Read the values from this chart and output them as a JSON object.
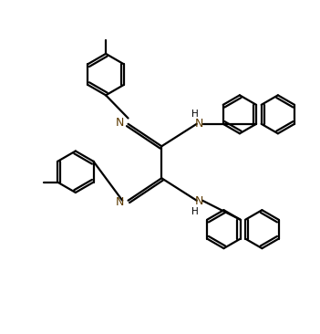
{
  "background_color": "#ffffff",
  "line_color": "#000000",
  "bond_lw": 1.6,
  "figsize": [
    3.51,
    3.66
  ],
  "dpi": 100,
  "xlim": [
    0,
    10
  ],
  "ylim": [
    0,
    10.4
  ]
}
